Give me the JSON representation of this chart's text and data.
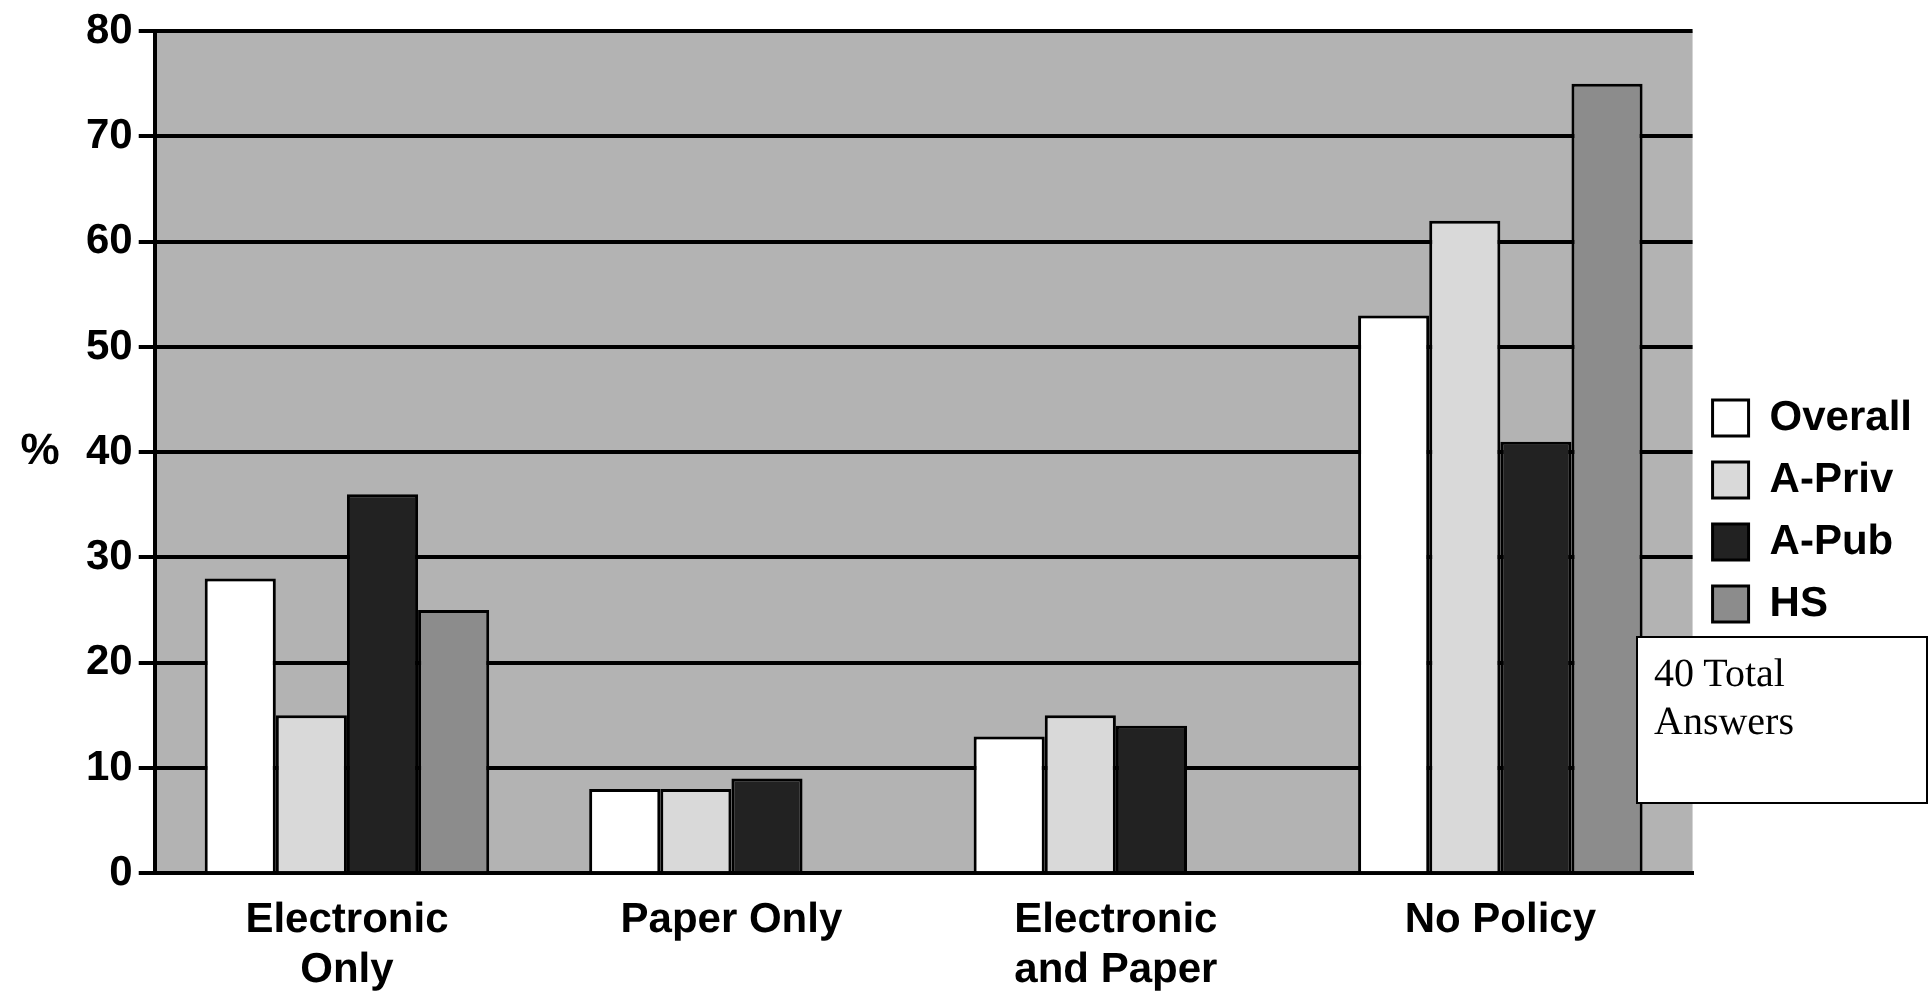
{
  "chart_data": {
    "type": "bar",
    "ylabel": "%",
    "categories": [
      "Electronic Only",
      "Paper Only",
      "Electronic and Paper",
      "No Policy"
    ],
    "series": [
      {
        "name": "Overall",
        "color": "#ffffff",
        "values": [
          28,
          8,
          13,
          53
        ]
      },
      {
        "name": "A-Priv",
        "color": "#d9d9d9",
        "values": [
          15,
          8,
          15,
          62
        ]
      },
      {
        "name": "A-Pub",
        "color": "#222222",
        "values": [
          36,
          9,
          14,
          41
        ]
      },
      {
        "name": "HS",
        "color": "#8c8c8c",
        "values": [
          25,
          null,
          null,
          75
        ]
      }
    ],
    "ylim": [
      0,
      80
    ],
    "yticks": [
      0,
      10,
      20,
      30,
      40,
      50,
      60,
      70,
      80
    ],
    "grid": "y",
    "legend": "right",
    "annotations": [
      "40 Total Answers"
    ]
  }
}
